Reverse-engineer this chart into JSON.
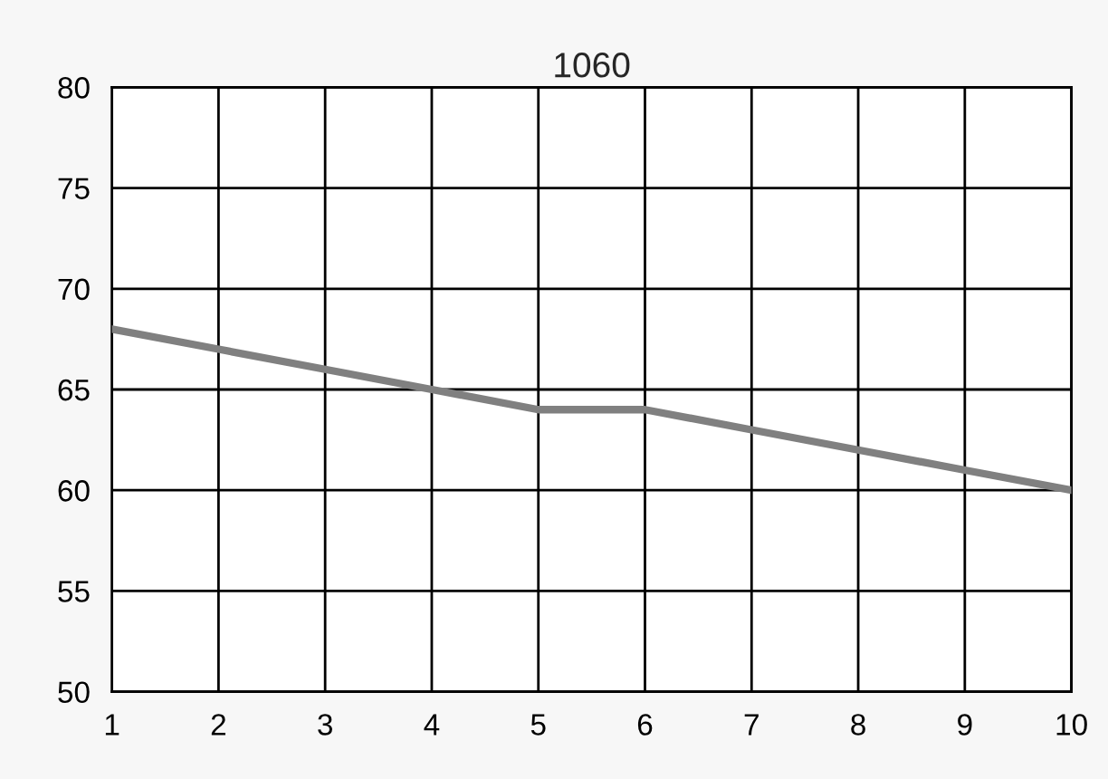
{
  "chart_data": {
    "type": "line",
    "title": "1060",
    "x": [
      1,
      2,
      3,
      4,
      5,
      6,
      7,
      8,
      9,
      10
    ],
    "series": [
      {
        "color": "#808080",
        "values": [
          68,
          67,
          66,
          65,
          64,
          64,
          63,
          62,
          61,
          60
        ]
      }
    ],
    "xlim": [
      1,
      10
    ],
    "xticks": [
      1,
      2,
      3,
      4,
      5,
      6,
      7,
      8,
      9,
      10
    ],
    "ylim": [
      50,
      80
    ],
    "yticks": [
      50,
      55,
      60,
      65,
      70,
      75,
      80
    ],
    "grid": true,
    "legend": false,
    "marker": "none",
    "line_style": "solid"
  }
}
